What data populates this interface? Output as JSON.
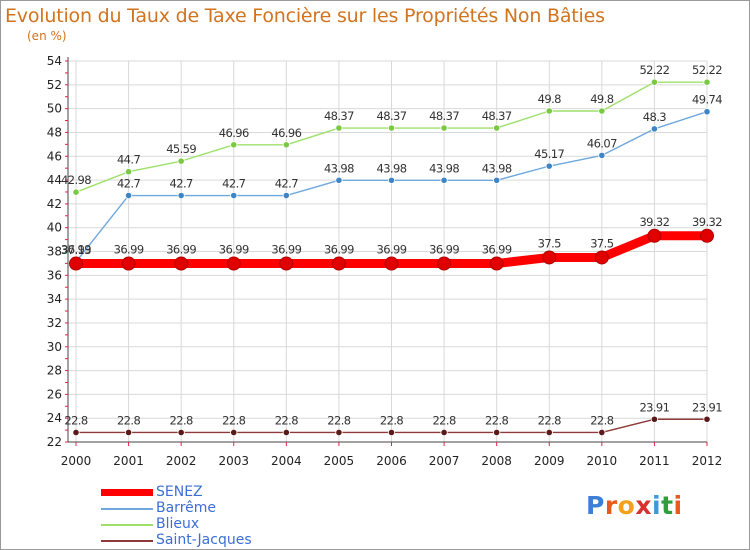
{
  "header": {
    "title": "Evolution du Taux de Taxe Foncière sur les Propriétés Non Bâties",
    "unit": "(en %)"
  },
  "colors": {
    "title": "#d2731e",
    "grid": "#d9d9d9",
    "axis_ticks": "#e0204a",
    "legend_text": "#3b6fd6"
  },
  "chart_data": {
    "type": "line",
    "title": "Evolution du Taux de Taxe Foncière sur les Propriétés Non Bâties",
    "ylabel": "(en %)",
    "xlabel": "",
    "x": [
      "2000",
      "2001",
      "2002",
      "2003",
      "2004",
      "2005",
      "2006",
      "2007",
      "2008",
      "2009",
      "2010",
      "2011",
      "2012"
    ],
    "ylim": [
      22,
      54
    ],
    "yticks": [
      22,
      24,
      26,
      28,
      30,
      32,
      34,
      36,
      38,
      40,
      42,
      44,
      46,
      48,
      50,
      52,
      54
    ],
    "grid": true,
    "legend_position": "bottom-left",
    "series": [
      {
        "name": "SENEZ",
        "color": "#ff0000",
        "marker_color": "#e00000",
        "bold": true,
        "values": [
          36.99,
          36.99,
          36.99,
          36.99,
          36.99,
          36.99,
          36.99,
          36.99,
          36.99,
          37.5,
          37.5,
          39.32,
          39.32
        ],
        "labels": [
          "36.99",
          "36.99",
          "36.99",
          "36.99",
          "36.99",
          "36.99",
          "36.99",
          "36.99",
          "36.99",
          "37.5",
          "37.5",
          "39.32",
          "39.32"
        ]
      },
      {
        "name": "Barrême",
        "color": "#6fa8dc",
        "marker_color": "#3d85c6",
        "bold": false,
        "values": [
          37.13,
          42.7,
          42.7,
          42.7,
          42.7,
          43.98,
          43.98,
          43.98,
          43.98,
          45.17,
          46.07,
          48.3,
          49.74
        ],
        "labels": [
          "37.13",
          "42.7",
          "42.7",
          "42.7",
          "42.7",
          "43.98",
          "43.98",
          "43.98",
          "43.98",
          "45.17",
          "46.07",
          "48.3",
          "49.74"
        ]
      },
      {
        "name": "Blieux",
        "color": "#9ee06a",
        "marker_color": "#7ac943",
        "bold": false,
        "values": [
          42.98,
          44.7,
          45.59,
          46.96,
          46.96,
          48.37,
          48.37,
          48.37,
          48.37,
          49.8,
          49.8,
          52.22,
          52.22
        ],
        "labels": [
          "42.98",
          "44.7",
          "45.59",
          "46.96",
          "46.96",
          "48.37",
          "48.37",
          "48.37",
          "48.37",
          "49.8",
          "49.8",
          "52.22",
          "52.22"
        ]
      },
      {
        "name": "Saint-Jacques",
        "color": "#8e3a3a",
        "marker_color": "#5b1a1a",
        "bold": false,
        "values": [
          22.8,
          22.8,
          22.8,
          22.8,
          22.8,
          22.8,
          22.8,
          22.8,
          22.8,
          22.8,
          22.8,
          23.91,
          23.91
        ],
        "labels": [
          "22.8",
          "22.8",
          "22.8",
          "22.8",
          "22.8",
          "22.8",
          "22.8",
          "22.8",
          "22.8",
          "22.8",
          "22.8",
          "23.91",
          "23.91"
        ]
      }
    ]
  },
  "legend": {
    "items": [
      "SENEZ",
      "Barrême",
      "Blieux",
      "Saint-Jacques"
    ]
  },
  "logo": {
    "text": "Proxiti"
  }
}
